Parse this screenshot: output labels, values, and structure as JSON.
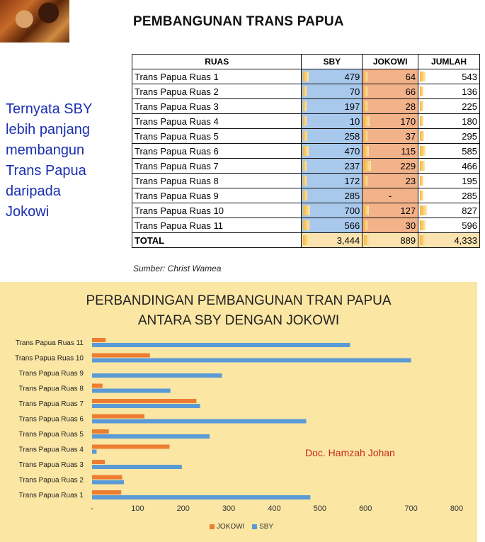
{
  "header": {
    "title": "PEMBANGUNAN TRANS PAPUA",
    "side_note": [
      "Ternyata SBY",
      "lebih panjang",
      "membangun",
      "Trans Papua",
      "daripada",
      "Jokowi"
    ]
  },
  "table": {
    "columns": [
      "RUAS",
      "SBY",
      "JOKOWI",
      "JUMLAH"
    ],
    "rows": [
      {
        "ruas": "Trans Papua Ruas 1",
        "sby": "479",
        "jokowi": "64",
        "jumlah": "543"
      },
      {
        "ruas": "Trans Papua Ruas 2",
        "sby": "70",
        "jokowi": "66",
        "jumlah": "136"
      },
      {
        "ruas": "Trans Papua Ruas 3",
        "sby": "197",
        "jokowi": "28",
        "jumlah": "225"
      },
      {
        "ruas": "Trans Papua Ruas 4",
        "sby": "10",
        "jokowi": "170",
        "jumlah": "180"
      },
      {
        "ruas": "Trans Papua Ruas 5",
        "sby": "258",
        "jokowi": "37",
        "jumlah": "295"
      },
      {
        "ruas": "Trans Papua Ruas 6",
        "sby": "470",
        "jokowi": "115",
        "jumlah": "585"
      },
      {
        "ruas": "Trans Papua Ruas 7",
        "sby": "237",
        "jokowi": "229",
        "jumlah": "466"
      },
      {
        "ruas": "Trans Papua Ruas 8",
        "sby": "172",
        "jokowi": "23",
        "jumlah": "195"
      },
      {
        "ruas": "Trans Papua Ruas 9",
        "sby": "285",
        "jokowi": "-",
        "jumlah": "285"
      },
      {
        "ruas": "Trans Papua Ruas 10",
        "sby": "700",
        "jokowi": "127",
        "jumlah": "827"
      },
      {
        "ruas": "Trans Papua Ruas 11",
        "sby": "566",
        "jokowi": "30",
        "jumlah": "596"
      }
    ],
    "total": {
      "ruas": "TOTAL",
      "sby": "3,444",
      "jokowi": "889",
      "jumlah": "4,333"
    }
  },
  "source": "Sumber: Christ Wamea",
  "watermark": "Doc. Hamzah Johan",
  "colors": {
    "sby": "#5b9bd5",
    "jokowi": "#ed7d31",
    "panel": "#fbe6a4"
  },
  "chart_data": {
    "type": "bar",
    "orientation": "horizontal",
    "title": [
      "PERBANDINGAN PEMBANGUNAN TRAN PAPUA",
      "ANTARA SBY DENGAN JOKOWI"
    ],
    "categories": [
      "Trans Papua Ruas 1",
      "Trans Papua Ruas 2",
      "Trans Papua Ruas 3",
      "Trans Papua Ruas 4",
      "Trans Papua Ruas 5",
      "Trans Papua Ruas 6",
      "Trans Papua Ruas 7",
      "Trans Papua Ruas 8",
      "Trans Papua Ruas 9",
      "Trans Papua Ruas 10",
      "Trans Papua Ruas 11"
    ],
    "series": [
      {
        "name": "JOKOWI",
        "values": [
          64,
          66,
          28,
          170,
          37,
          115,
          229,
          23,
          0,
          127,
          30
        ]
      },
      {
        "name": "SBY",
        "values": [
          479,
          70,
          197,
          10,
          258,
          470,
          237,
          172,
          285,
          700,
          566
        ]
      }
    ],
    "xticks": [
      "-",
      "100",
      "200",
      "300",
      "400",
      "500",
      "600",
      "700",
      "800"
    ],
    "xlim": [
      0,
      800
    ],
    "grid": false,
    "legend": "bottom"
  }
}
